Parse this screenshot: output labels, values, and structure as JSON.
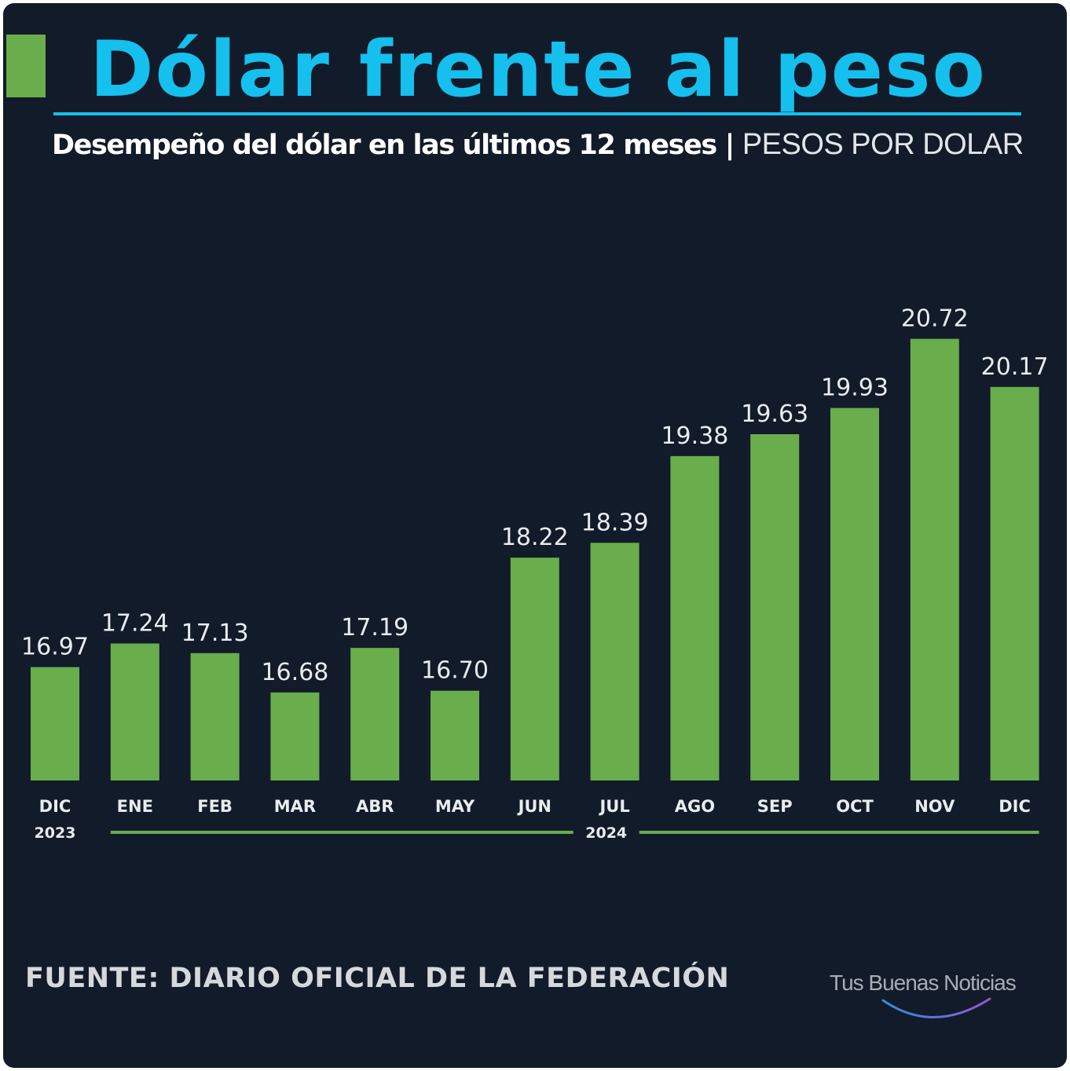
{
  "header": {
    "title": "Dólar frente al peso",
    "subtitle_main": "Desempeño del dólar en las últimos 12 meses | ",
    "subtitle_unit": "PESOS POR DOLAR"
  },
  "footer": {
    "source": "FUENTE: DIARIO OFICIAL DE LA FEDERACIÓN",
    "logo": "Tus Buenas Noticias"
  },
  "colors": {
    "background": "#111b2a",
    "bar": "#6aad4c",
    "title": "#15bfee",
    "year_line": "#6aad4c"
  },
  "chart_data": {
    "type": "bar",
    "title": "Dólar frente al peso",
    "subtitle": "Desempeño del dólar en las últimos 12 meses | PESOS POR DOLAR",
    "categories": [
      "DIC",
      "ENE",
      "FEB",
      "MAR",
      "ABR",
      "MAY",
      "JUN",
      "JUL",
      "AGO",
      "SEP",
      "OCT",
      "NOV",
      "DIC"
    ],
    "values": [
      16.97,
      17.24,
      17.13,
      16.68,
      17.19,
      16.7,
      18.22,
      18.39,
      19.38,
      19.63,
      19.93,
      20.72,
      20.17
    ],
    "value_labels": [
      "16.97",
      "17.24",
      "17.13",
      "16.68",
      "17.19",
      "16.70",
      "18.22",
      "18.39",
      "19.38",
      "19.63",
      "19.93",
      "20.72",
      "20.17"
    ],
    "year_groups": [
      {
        "label": "2023",
        "start_index": 0,
        "end_index": 0
      },
      {
        "label": "2024",
        "start_index": 1,
        "end_index": 12
      }
    ],
    "grid": false,
    "legend": "none"
  }
}
